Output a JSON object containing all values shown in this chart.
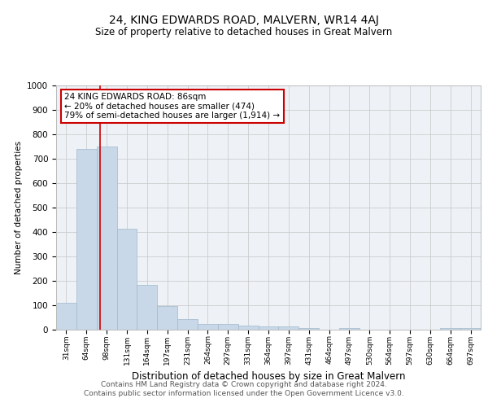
{
  "title": "24, KING EDWARDS ROAD, MALVERN, WR14 4AJ",
  "subtitle": "Size of property relative to detached houses in Great Malvern",
  "xlabel": "Distribution of detached houses by size in Great Malvern",
  "ylabel": "Number of detached properties",
  "categories": [
    "31sqm",
    "64sqm",
    "98sqm",
    "131sqm",
    "164sqm",
    "197sqm",
    "231sqm",
    "264sqm",
    "297sqm",
    "331sqm",
    "364sqm",
    "397sqm",
    "431sqm",
    "464sqm",
    "497sqm",
    "530sqm",
    "564sqm",
    "597sqm",
    "630sqm",
    "664sqm",
    "697sqm"
  ],
  "values": [
    110,
    740,
    750,
    415,
    185,
    97,
    45,
    22,
    25,
    18,
    15,
    15,
    8,
    0,
    8,
    0,
    0,
    0,
    0,
    8,
    8
  ],
  "bar_color": "#c8d8e8",
  "bar_edge_color": "#a0b8cc",
  "grid_color": "#cccccc",
  "bg_color": "#eef2f7",
  "vline_color": "#cc0000",
  "vline_x": 1.68,
  "annotation_text": "24 KING EDWARDS ROAD: 86sqm\n← 20% of detached houses are smaller (474)\n79% of semi-detached houses are larger (1,914) →",
  "annotation_box_color": "#ffffff",
  "annotation_box_edge": "#cc0000",
  "footer": "Contains HM Land Registry data © Crown copyright and database right 2024.\nContains public sector information licensed under the Open Government Licence v3.0.",
  "ylim": [
    0,
    1000
  ],
  "yticks": [
    0,
    100,
    200,
    300,
    400,
    500,
    600,
    700,
    800,
    900,
    1000
  ]
}
